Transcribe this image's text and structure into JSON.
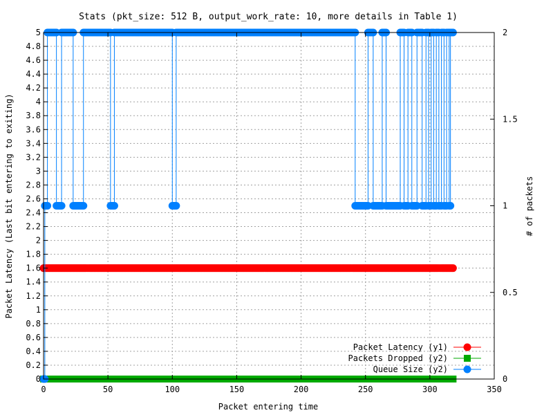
{
  "chart_data": {
    "type": "line",
    "title": "Stats (pkt_size: 512 B, output_work_rate: 10, more details in Table 1)",
    "xlabel": "Packet entering time",
    "ylabel": "Packet Latency (Last bit entering to exiting)",
    "y2label": "# of packets",
    "xlim": [
      0,
      350
    ],
    "ylim": [
      0,
      5
    ],
    "y2lim": [
      0,
      2
    ],
    "x_ticks": [
      "0",
      "50",
      "100",
      "150",
      "200",
      "250",
      "300",
      "350"
    ],
    "y_ticks": [
      "0",
      "0.2",
      "0.4",
      "0.6",
      "0.8",
      "1",
      "1.2",
      "1.4",
      "1.6",
      "1.8",
      "2",
      "2.2",
      "2.4",
      "2.6",
      "2.8",
      "3",
      "3.2",
      "3.4",
      "3.6",
      "3.8",
      "4",
      "4.2",
      "4.4",
      "4.6",
      "4.8",
      "5"
    ],
    "y2_ticks": [
      "0",
      "0.5",
      "1",
      "1.5",
      "2"
    ],
    "grid": true,
    "legend_position": "bottom-right",
    "series": [
      {
        "name": "Packet Latency (y1)",
        "axis": "y1",
        "color": "#ff0000",
        "marker": "circle",
        "x_range": [
          0,
          318
        ],
        "constant_value": 1.6
      },
      {
        "name": "Packets Dropped (y2)",
        "axis": "y2",
        "color": "#00aa00",
        "marker": "square",
        "x_range": [
          0,
          318
        ],
        "constant_value": 0
      },
      {
        "name": "Queue Size (y2)",
        "axis": "y2",
        "color": "#0080ff",
        "marker": "circle",
        "x_start": 0,
        "x_end": 318,
        "segments": [
          {
            "from": 0,
            "to": 1,
            "value": 0
          },
          {
            "from": 1,
            "to": 3,
            "value": 1
          },
          {
            "from": 3,
            "to": 10,
            "value": 2
          },
          {
            "from": 10,
            "to": 14,
            "value": 1
          },
          {
            "from": 14,
            "to": 23,
            "value": 2
          },
          {
            "from": 23,
            "to": 31,
            "value": 1
          },
          {
            "from": 31,
            "to": 52,
            "value": 2
          },
          {
            "from": 52,
            "to": 55,
            "value": 1
          },
          {
            "from": 55,
            "to": 100,
            "value": 2
          },
          {
            "from": 100,
            "to": 103,
            "value": 1
          },
          {
            "from": 103,
            "to": 242,
            "value": 2
          },
          {
            "from": 242,
            "to": 252,
            "value": 1
          },
          {
            "from": 252,
            "to": 256,
            "value": 2
          },
          {
            "from": 256,
            "to": 263,
            "value": 1
          },
          {
            "from": 263,
            "to": 266,
            "value": 2
          },
          {
            "from": 266,
            "to": 277,
            "value": 1
          },
          {
            "from": 277,
            "to": 280,
            "value": 2
          },
          {
            "from": 280,
            "to": 283,
            "value": 1
          },
          {
            "from": 283,
            "to": 286,
            "value": 2
          },
          {
            "from": 286,
            "to": 290,
            "value": 1
          },
          {
            "from": 290,
            "to": 294,
            "value": 2
          },
          {
            "from": 294,
            "to": 297,
            "value": 1
          },
          {
            "from": 297,
            "to": 299,
            "value": 2
          },
          {
            "from": 299,
            "to": 301,
            "value": 1
          },
          {
            "from": 301,
            "to": 303,
            "value": 2
          },
          {
            "from": 303,
            "to": 305,
            "value": 1
          },
          {
            "from": 305,
            "to": 307,
            "value": 2
          },
          {
            "from": 307,
            "to": 309,
            "value": 1
          },
          {
            "from": 309,
            "to": 311,
            "value": 2
          },
          {
            "from": 311,
            "to": 313,
            "value": 1
          },
          {
            "from": 313,
            "to": 315,
            "value": 2
          },
          {
            "from": 315,
            "to": 316,
            "value": 1
          },
          {
            "from": 316,
            "to": 318,
            "value": 2
          }
        ]
      }
    ]
  }
}
